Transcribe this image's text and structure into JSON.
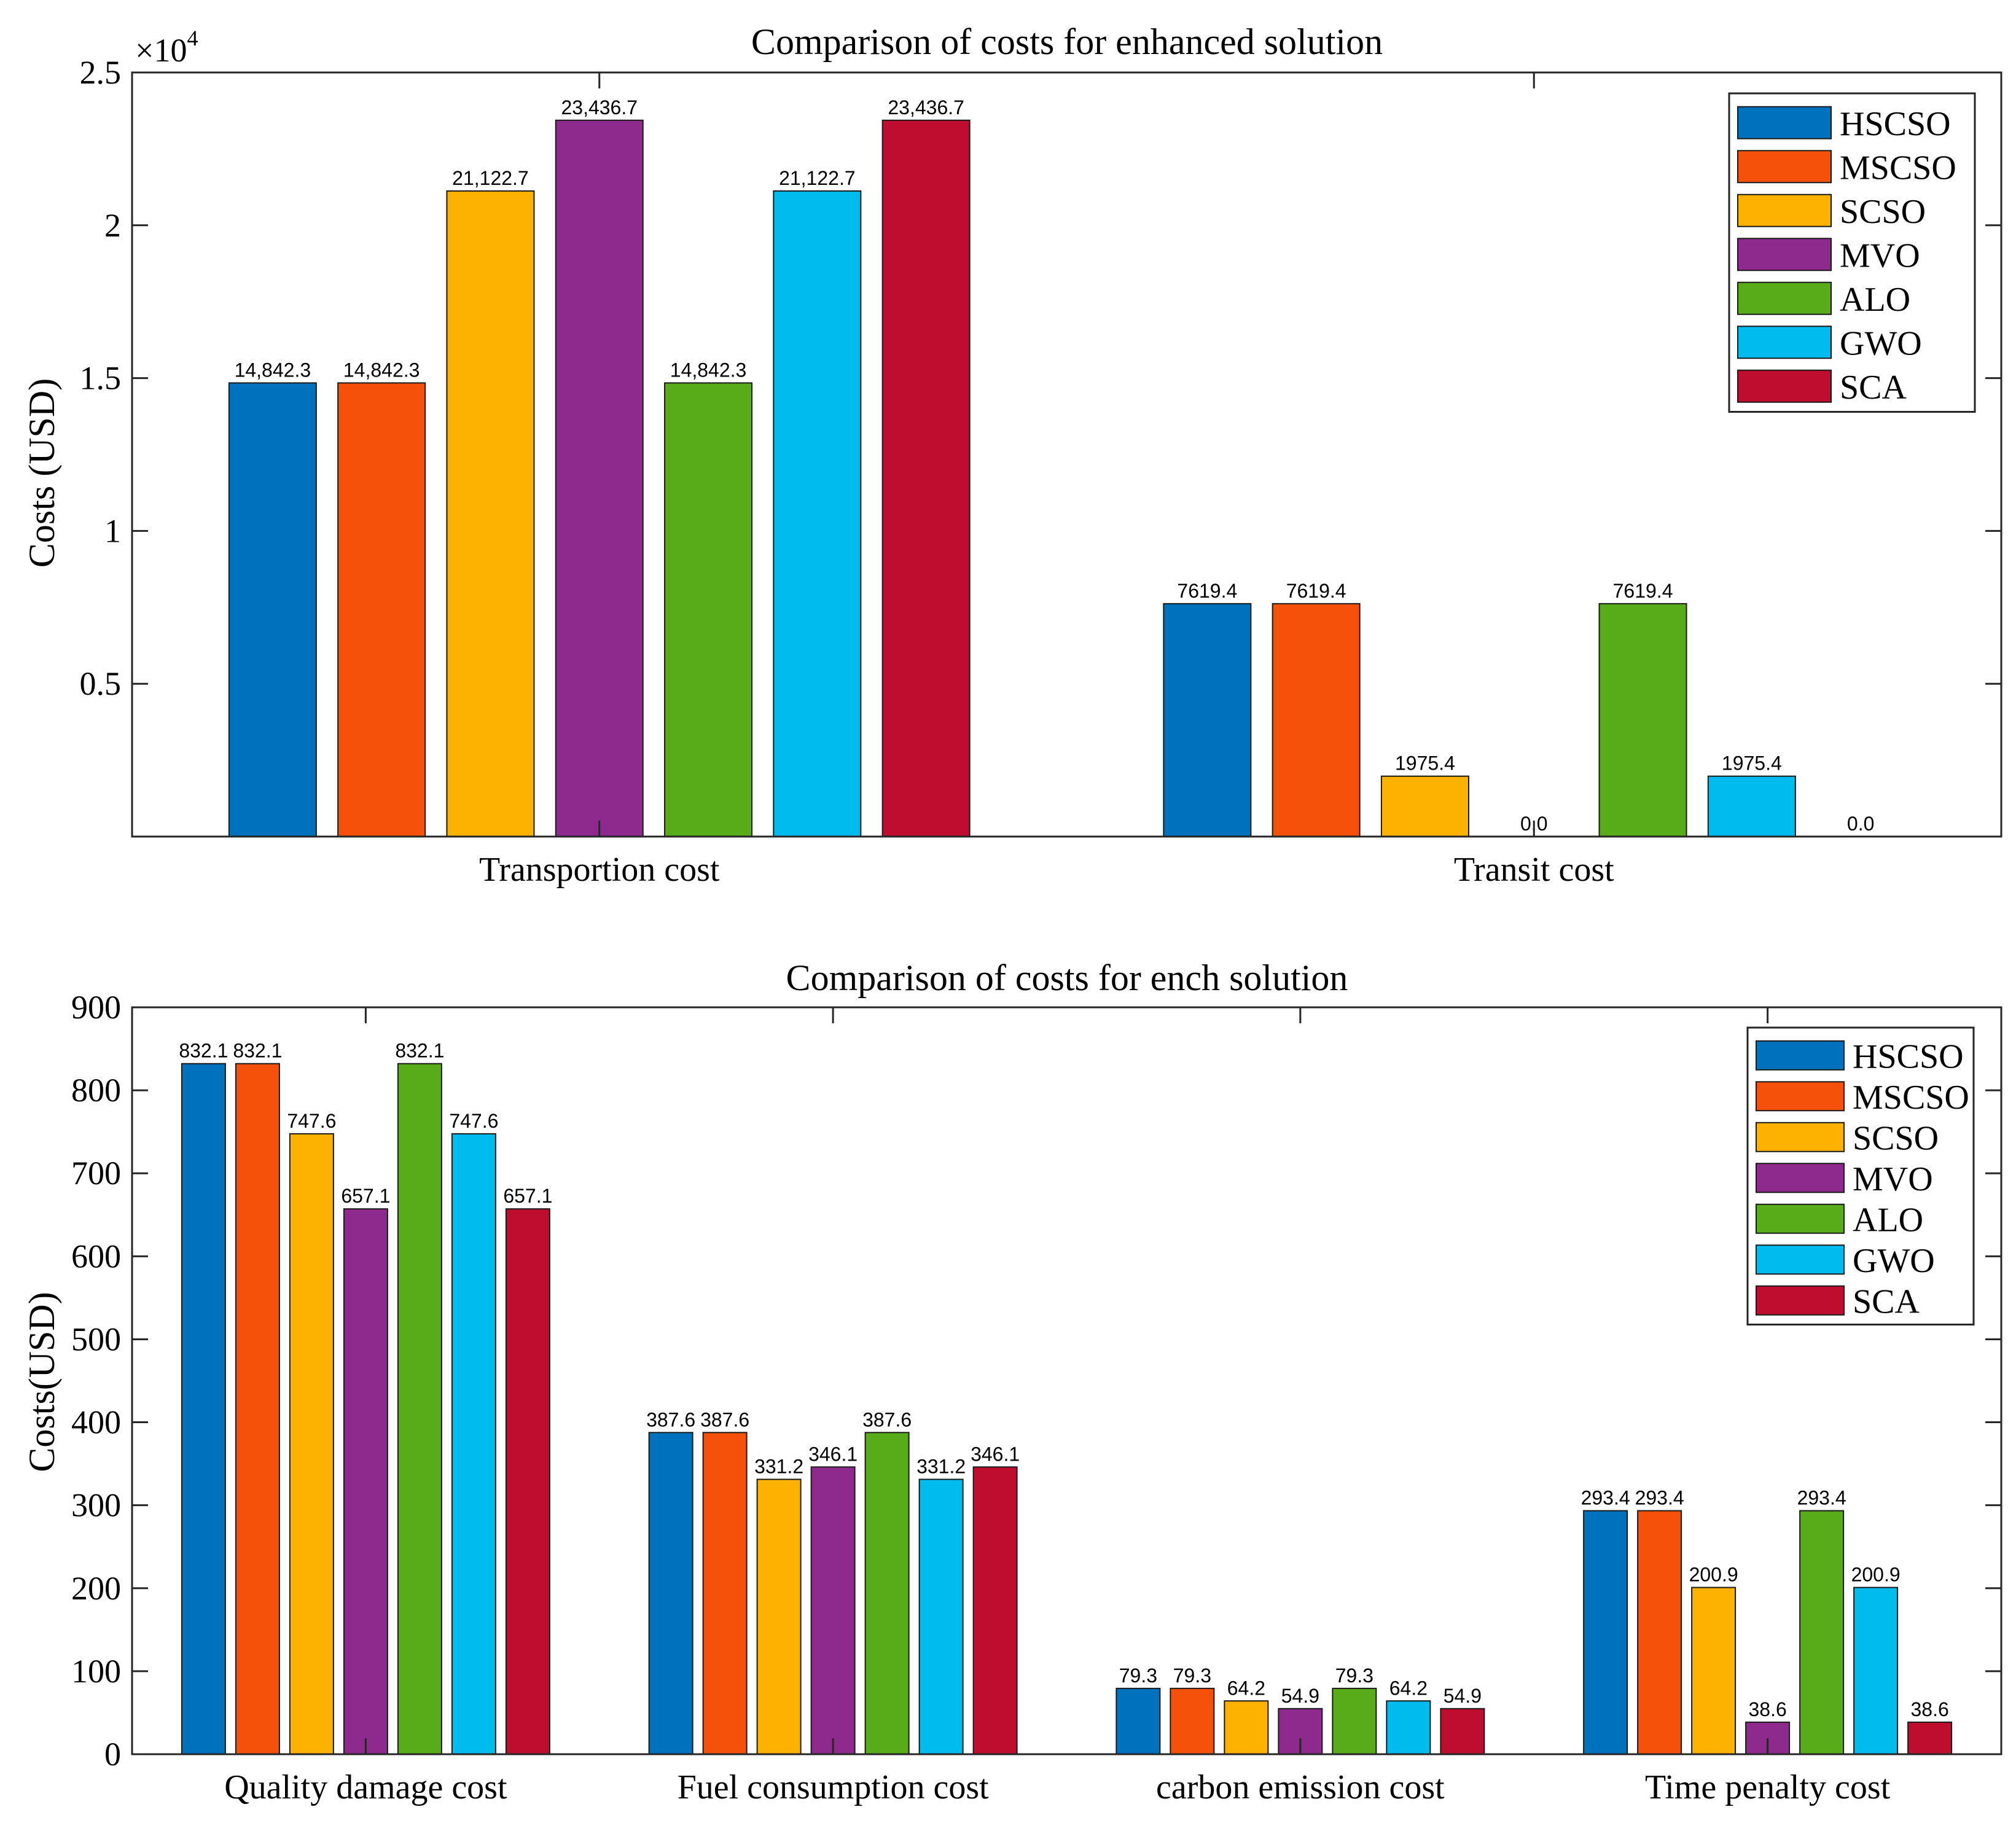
{
  "chart_data": [
    {
      "type": "bar",
      "title": "Comparison of costs for enhanced solution",
      "xlabel": "",
      "ylabel": "Costs (USD)",
      "y_exponent_label": "×10",
      "y_exponent_power": "4",
      "ylim": [
        0,
        25000
      ],
      "yticks": [
        5000,
        10000,
        15000,
        20000,
        25000
      ],
      "ytick_labels": [
        "0.5",
        "1",
        "1.5",
        "2",
        "2.5"
      ],
      "categories": [
        "Transportion cost",
        "Transit cost"
      ],
      "legend_position": "top-right",
      "series": [
        {
          "name": "HSCSO",
          "color": "#0072BD",
          "values": [
            14842.3,
            7619.4
          ],
          "labels": [
            "14,842.3",
            "7619.4"
          ]
        },
        {
          "name": "MSCSO",
          "color": "#F6510B",
          "values": [
            14842.3,
            7619.4
          ],
          "labels": [
            "14,842.3",
            "7619.4"
          ]
        },
        {
          "name": "SCSO",
          "color": "#FDB100",
          "values": [
            21122.7,
            1975.4
          ],
          "labels": [
            "21,122.7",
            "1975.4"
          ]
        },
        {
          "name": "MVO",
          "color": "#8E2A8D",
          "values": [
            23436.7,
            0.0
          ],
          "labels": [
            "23,436.7",
            "0.0"
          ]
        },
        {
          "name": "ALO",
          "color": "#58AC19",
          "values": [
            14842.3,
            7619.4
          ],
          "labels": [
            "14,842.3",
            "7619.4"
          ]
        },
        {
          "name": "GWO",
          "color": "#00BCEE",
          "values": [
            21122.7,
            1975.4
          ],
          "labels": [
            "21,122.7",
            "1975.4"
          ]
        },
        {
          "name": "SCA",
          "color": "#BE0D2E",
          "values": [
            23436.7,
            0.0
          ],
          "labels": [
            "23,436.7",
            "0.0"
          ]
        }
      ]
    },
    {
      "type": "bar",
      "title": "Comparison of costs for ench solution",
      "xlabel": "",
      "ylabel": "Costs(USD)",
      "ylim": [
        0,
        900
      ],
      "yticks": [
        0,
        100,
        200,
        300,
        400,
        500,
        600,
        700,
        800,
        900
      ],
      "ytick_labels": [
        "0",
        "100",
        "200",
        "300",
        "400",
        "500",
        "600",
        "700",
        "800",
        "900"
      ],
      "categories": [
        "Quality damage cost",
        "Fuel consumption cost",
        "carbon emission cost",
        "Time penalty cost"
      ],
      "legend_position": "top-right",
      "series": [
        {
          "name": "HSCSO",
          "color": "#0072BD",
          "values": [
            832.1,
            387.6,
            79.3,
            293.4
          ],
          "labels": [
            "832.1",
            "387.6",
            "79.3",
            "293.4"
          ]
        },
        {
          "name": "MSCSO",
          "color": "#F6510B",
          "values": [
            832.1,
            387.6,
            79.3,
            293.4
          ],
          "labels": [
            "832.1",
            "387.6",
            "79.3",
            "293.4"
          ]
        },
        {
          "name": "SCSO",
          "color": "#FDB100",
          "values": [
            747.6,
            331.2,
            64.2,
            200.9
          ],
          "labels": [
            "747.6",
            "331.2",
            "64.2",
            "200.9"
          ]
        },
        {
          "name": "MVO",
          "color": "#8E2A8D",
          "values": [
            657.1,
            346.1,
            54.9,
            38.6
          ],
          "labels": [
            "657.1",
            "346.1",
            "54.9",
            "38.6"
          ]
        },
        {
          "name": "ALO",
          "color": "#58AC19",
          "values": [
            832.1,
            387.6,
            79.3,
            293.4
          ],
          "labels": [
            "832.1",
            "387.6",
            "79.3",
            "293.4"
          ]
        },
        {
          "name": "GWO",
          "color": "#00BCEE",
          "values": [
            747.6,
            331.2,
            64.2,
            200.9
          ],
          "labels": [
            "747.6",
            "331.2",
            "64.2",
            "200.9"
          ]
        },
        {
          "name": "SCA",
          "color": "#BE0D2E",
          "values": [
            657.1,
            346.1,
            54.9,
            38.6
          ],
          "labels": [
            "657.1",
            "346.1",
            "54.9",
            "38.6"
          ]
        }
      ]
    }
  ]
}
